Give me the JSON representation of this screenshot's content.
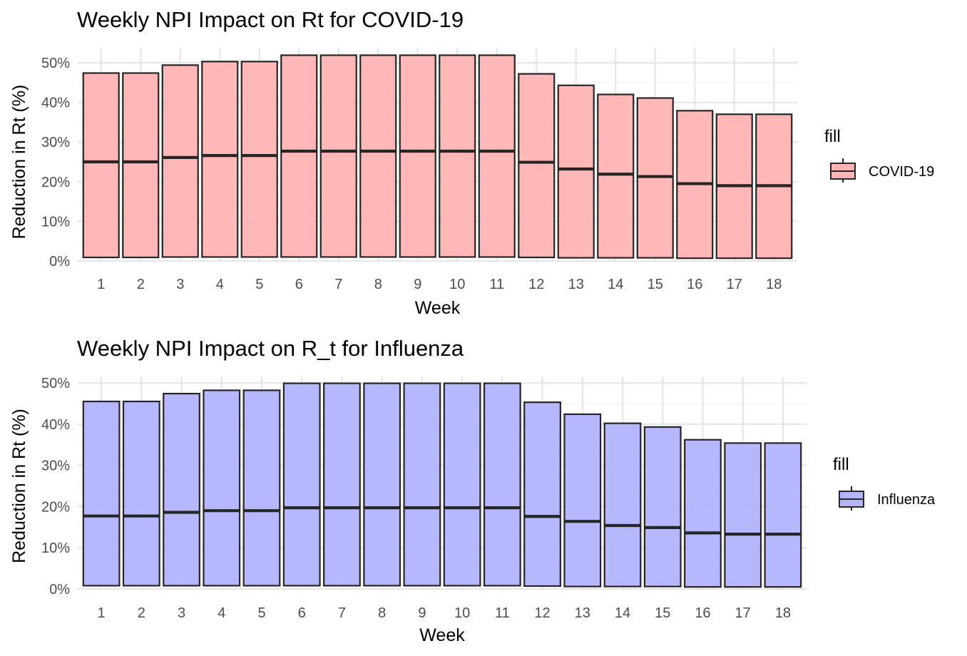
{
  "chart_data": [
    {
      "type": "boxplot",
      "title": "Weekly NPI Impact on Rt for COVID-19",
      "xlabel": "Week",
      "ylabel": "Reduction in Rt (%)",
      "categories": [
        "1",
        "2",
        "3",
        "4",
        "5",
        "6",
        "7",
        "8",
        "9",
        "10",
        "11",
        "12",
        "13",
        "14",
        "15",
        "16",
        "17",
        "18"
      ],
      "ylim": [
        0,
        52
      ],
      "yticks": [
        "0%",
        "10%",
        "20%",
        "30%",
        "40%",
        "50%"
      ],
      "ytick_values": [
        0,
        10,
        20,
        30,
        40,
        50
      ],
      "grid": true,
      "legend": {
        "title": "fill",
        "position": "right",
        "entries": [
          "COVID-19"
        ]
      },
      "fill_color": "#ffb3b3",
      "series": [
        {
          "name": "COVID-19",
          "lower": [
            0.9,
            0.9,
            1.0,
            1.0,
            1.0,
            1.0,
            1.0,
            1.0,
            1.0,
            1.0,
            1.0,
            0.9,
            0.8,
            0.8,
            0.8,
            0.7,
            0.7,
            0.7
          ],
          "median": [
            25.0,
            25.0,
            26.1,
            26.6,
            26.6,
            27.7,
            27.7,
            27.7,
            27.7,
            27.7,
            27.7,
            24.9,
            23.2,
            21.9,
            21.3,
            19.5,
            19.0,
            19.0
          ],
          "upper": [
            47.4,
            47.4,
            49.4,
            50.3,
            50.3,
            51.9,
            51.9,
            51.9,
            51.9,
            51.9,
            51.9,
            47.2,
            44.3,
            42.0,
            41.1,
            37.9,
            37.0,
            37.0
          ]
        }
      ]
    },
    {
      "type": "boxplot",
      "title": "Weekly NPI Impact on R_t for Influenza",
      "xlabel": "Week",
      "ylabel": "Reduction in Rt (%)",
      "categories": [
        "1",
        "2",
        "3",
        "4",
        "5",
        "6",
        "7",
        "8",
        "9",
        "10",
        "11",
        "12",
        "13",
        "14",
        "15",
        "16",
        "17",
        "18"
      ],
      "ylim": [
        0,
        50.5
      ],
      "yticks": [
        "0%",
        "10%",
        "20%",
        "30%",
        "40%",
        "50%"
      ],
      "ytick_values": [
        0,
        10,
        20,
        30,
        40,
        50
      ],
      "grid": true,
      "legend": {
        "title": "fill",
        "position": "right",
        "entries": [
          "Influenza"
        ]
      },
      "fill_color": "#b3b3ff",
      "series": [
        {
          "name": "Influenza",
          "lower": [
            0.8,
            0.8,
            0.8,
            0.8,
            0.8,
            0.8,
            0.8,
            0.8,
            0.8,
            0.8,
            0.8,
            0.7,
            0.6,
            0.6,
            0.6,
            0.5,
            0.5,
            0.5
          ],
          "median": [
            17.7,
            17.7,
            18.6,
            19.0,
            19.0,
            19.7,
            19.7,
            19.7,
            19.7,
            19.7,
            19.7,
            17.6,
            16.4,
            15.4,
            14.9,
            13.6,
            13.3,
            13.3
          ],
          "upper": [
            45.5,
            45.5,
            47.4,
            48.2,
            48.2,
            49.9,
            49.9,
            49.9,
            49.9,
            49.9,
            49.9,
            45.3,
            42.4,
            40.2,
            39.3,
            36.2,
            35.4,
            35.4
          ]
        }
      ]
    }
  ]
}
